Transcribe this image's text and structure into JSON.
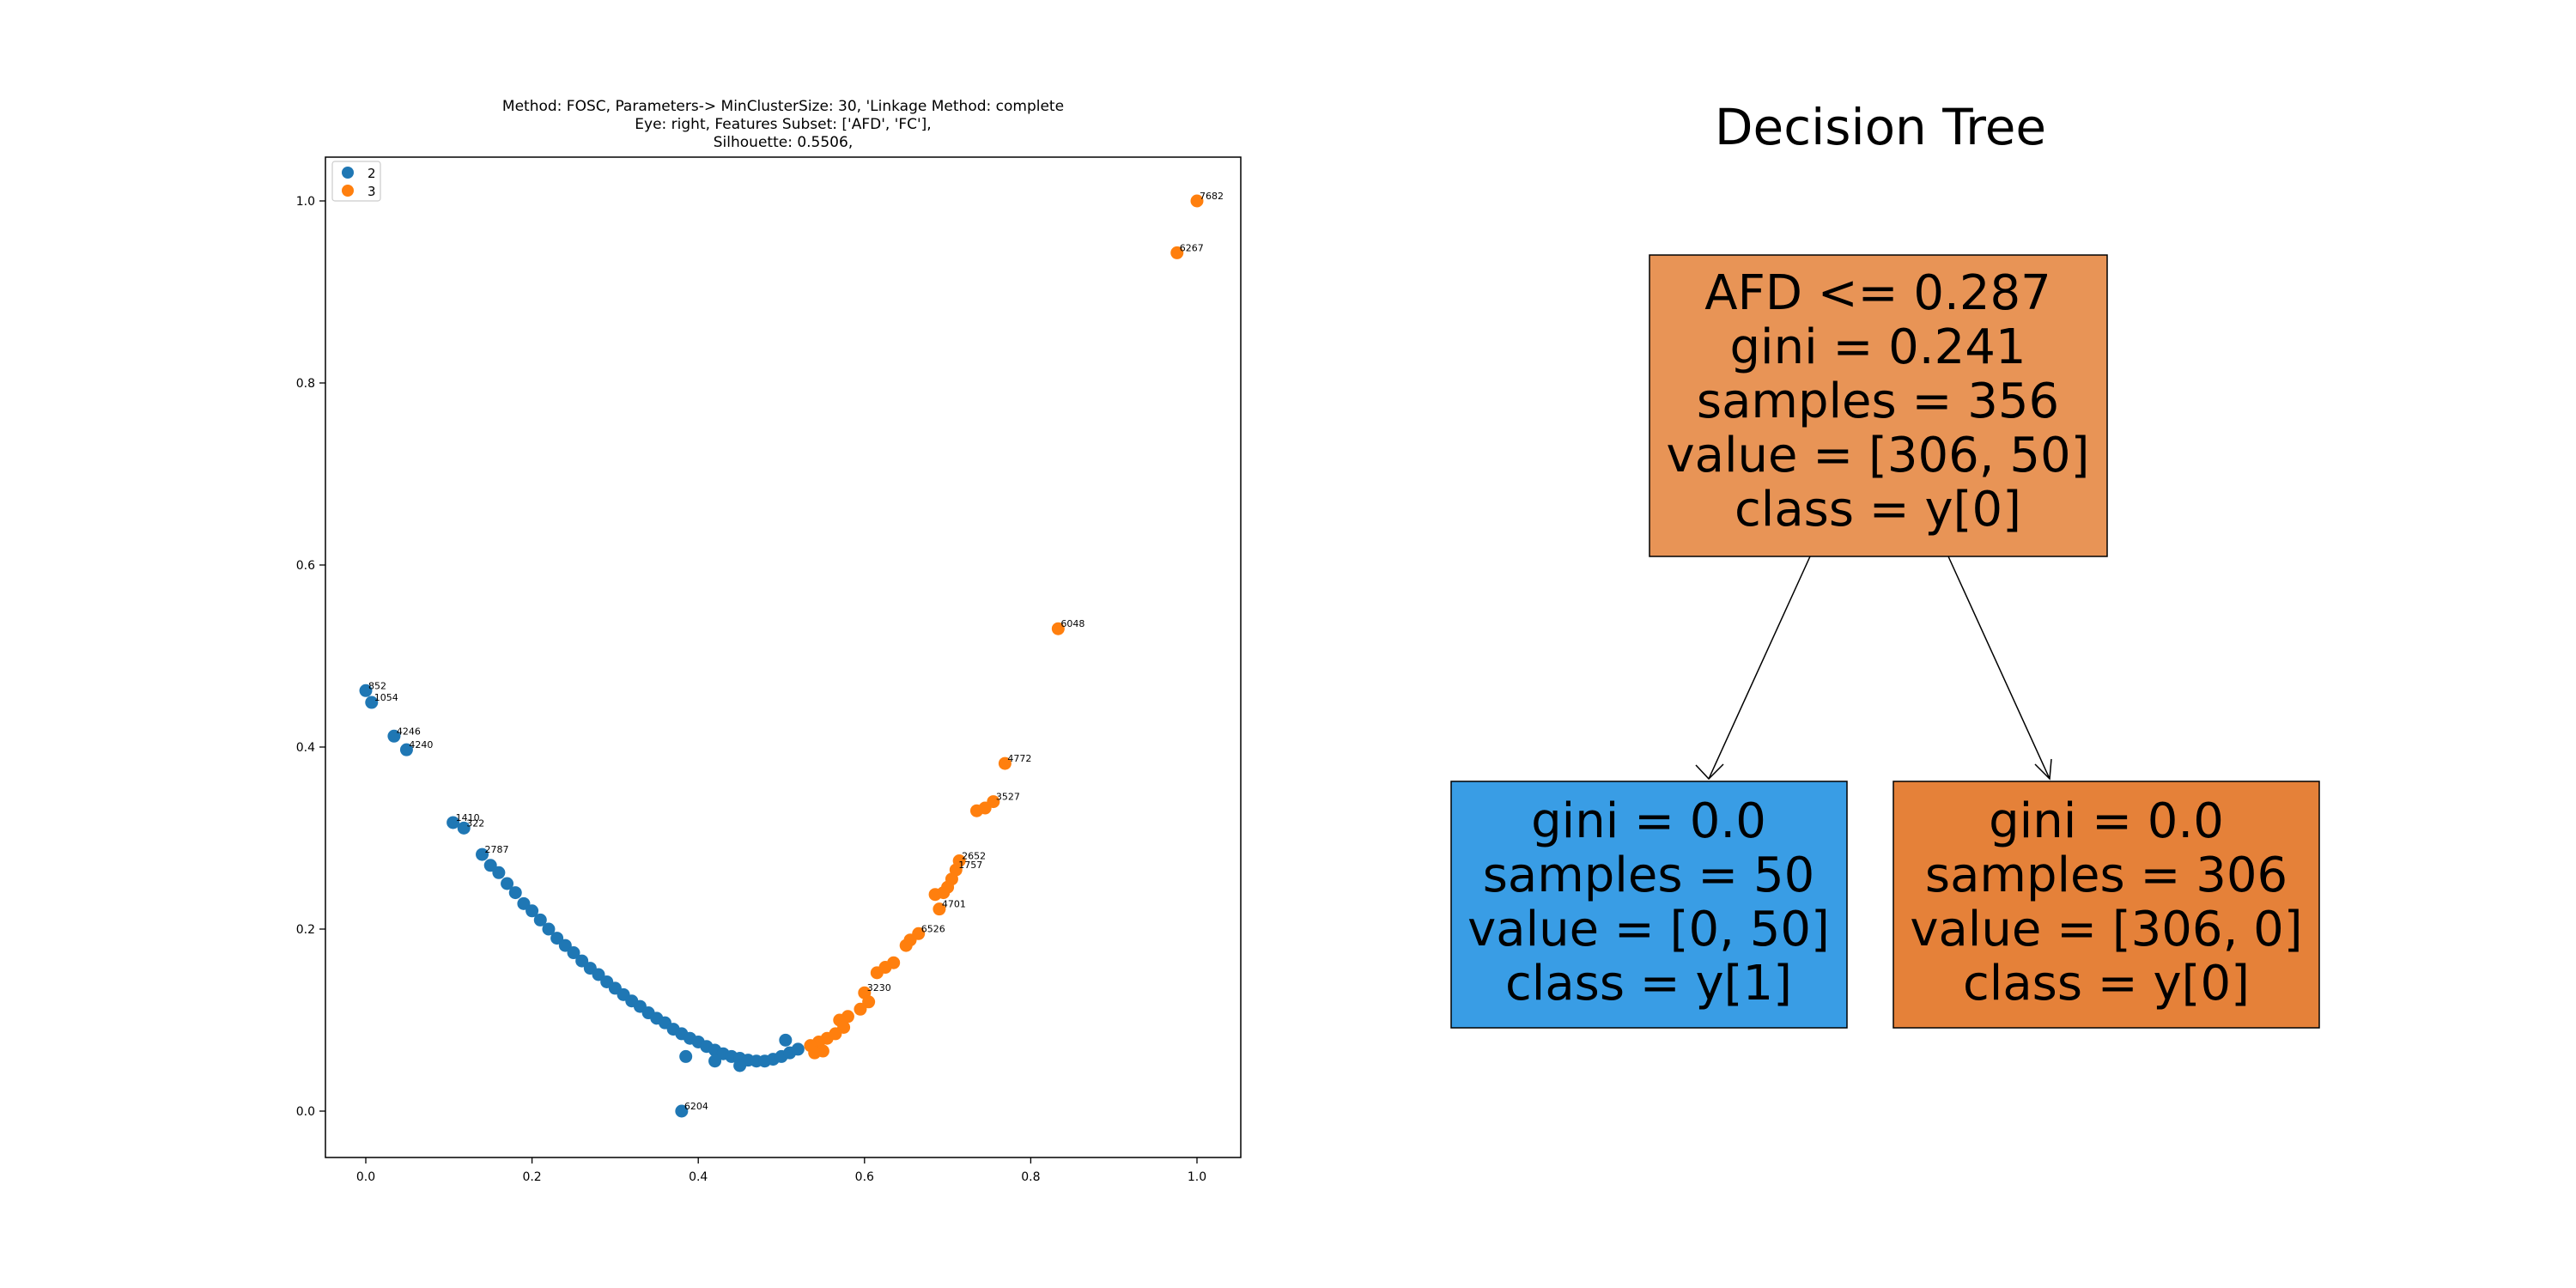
{
  "scatter": {
    "title_lines": [
      "Method: FOSC, Parameters-> MinClusterSize: 30, 'Linkage Method: complete",
      "Eye: right, Features Subset: ['AFD', 'FC'],",
      "Silhouette: 0.5506,"
    ],
    "legend": [
      {
        "label": "2",
        "color": "#1f77b4"
      },
      {
        "label": "3",
        "color": "#ff7f0e"
      }
    ]
  },
  "tree": {
    "title": "Decision Tree",
    "root": {
      "lines": [
        "AFD <= 0.287",
        "gini = 0.241",
        "samples = 356",
        "value = [306, 50]",
        "class = y[0]"
      ],
      "fill": "#e89456"
    },
    "left": {
      "lines": [
        "gini = 0.0",
        "samples = 50",
        "value = [0, 50]",
        "class = y[1]"
      ],
      "fill": "#399de5"
    },
    "right": {
      "lines": [
        "gini = 0.0",
        "samples = 306",
        "value = [306, 0]",
        "class = y[0]"
      ],
      "fill": "#e58139"
    }
  },
  "chart_data": {
    "type": "scatter",
    "title": "Method: FOSC, Parameters-> MinClusterSize: 30, 'Linkage Method: complete\nEye: right, Features Subset: ['AFD', 'FC'],\nSilhouette: 0.5506,",
    "xlabel": "",
    "ylabel": "",
    "xlim": [
      -0.05,
      1.05
    ],
    "ylim": [
      -0.05,
      1.05
    ],
    "xticks": [
      "0.0",
      "0.2",
      "0.4",
      "0.6",
      "0.8",
      "1.0"
    ],
    "yticks": [
      "0.0",
      "0.2",
      "0.4",
      "0.6",
      "0.8",
      "1.0"
    ],
    "grid": false,
    "legend_position": "top-left",
    "series": [
      {
        "name": "2",
        "color": "#1f77b4",
        "points": [
          {
            "x": 0.0,
            "y": 0.462,
            "label": "852"
          },
          {
            "x": 0.007,
            "y": 0.449,
            "label": "1054"
          },
          {
            "x": 0.034,
            "y": 0.412,
            "label": "4246"
          },
          {
            "x": 0.049,
            "y": 0.397,
            "label": "4240"
          },
          {
            "x": 0.105,
            "y": 0.317,
            "label": "1410"
          },
          {
            "x": 0.118,
            "y": 0.311,
            "label": "322"
          },
          {
            "x": 0.14,
            "y": 0.282,
            "label": "2787"
          },
          {
            "x": 0.15,
            "y": 0.27
          },
          {
            "x": 0.16,
            "y": 0.262
          },
          {
            "x": 0.17,
            "y": 0.25
          },
          {
            "x": 0.18,
            "y": 0.24
          },
          {
            "x": 0.19,
            "y": 0.228
          },
          {
            "x": 0.2,
            "y": 0.22
          },
          {
            "x": 0.21,
            "y": 0.21
          },
          {
            "x": 0.22,
            "y": 0.2
          },
          {
            "x": 0.23,
            "y": 0.19
          },
          {
            "x": 0.24,
            "y": 0.182
          },
          {
            "x": 0.25,
            "y": 0.174
          },
          {
            "x": 0.26,
            "y": 0.165
          },
          {
            "x": 0.27,
            "y": 0.157
          },
          {
            "x": 0.28,
            "y": 0.15
          },
          {
            "x": 0.29,
            "y": 0.142
          },
          {
            "x": 0.3,
            "y": 0.135
          },
          {
            "x": 0.31,
            "y": 0.128
          },
          {
            "x": 0.32,
            "y": 0.121
          },
          {
            "x": 0.33,
            "y": 0.115
          },
          {
            "x": 0.34,
            "y": 0.108
          },
          {
            "x": 0.35,
            "y": 0.102
          },
          {
            "x": 0.36,
            "y": 0.097
          },
          {
            "x": 0.37,
            "y": 0.09
          },
          {
            "x": 0.38,
            "y": 0.085
          },
          {
            "x": 0.39,
            "y": 0.08
          },
          {
            "x": 0.4,
            "y": 0.076
          },
          {
            "x": 0.41,
            "y": 0.071
          },
          {
            "x": 0.42,
            "y": 0.067
          },
          {
            "x": 0.43,
            "y": 0.063
          },
          {
            "x": 0.44,
            "y": 0.06
          },
          {
            "x": 0.45,
            "y": 0.058
          },
          {
            "x": 0.46,
            "y": 0.056
          },
          {
            "x": 0.47,
            "y": 0.055
          },
          {
            "x": 0.48,
            "y": 0.055
          },
          {
            "x": 0.49,
            "y": 0.057
          },
          {
            "x": 0.5,
            "y": 0.06
          },
          {
            "x": 0.51,
            "y": 0.064
          },
          {
            "x": 0.52,
            "y": 0.068
          },
          {
            "x": 0.385,
            "y": 0.06
          },
          {
            "x": 0.42,
            "y": 0.055
          },
          {
            "x": 0.45,
            "y": 0.05
          },
          {
            "x": 0.505,
            "y": 0.078
          },
          {
            "x": 0.38,
            "y": 0.0,
            "label": "6204"
          }
        ]
      },
      {
        "name": "3",
        "color": "#ff7f0e",
        "points": [
          {
            "x": 1.0,
            "y": 1.0,
            "label": "7682"
          },
          {
            "x": 0.976,
            "y": 0.943,
            "label": "6267"
          },
          {
            "x": 0.833,
            "y": 0.53,
            "label": "6048"
          },
          {
            "x": 0.769,
            "y": 0.382,
            "label": "4772"
          },
          {
            "x": 0.755,
            "y": 0.34,
            "label": "3527"
          },
          {
            "x": 0.745,
            "y": 0.333
          },
          {
            "x": 0.735,
            "y": 0.33
          },
          {
            "x": 0.714,
            "y": 0.275,
            "label": "2652"
          },
          {
            "x": 0.71,
            "y": 0.265,
            "label": "1757"
          },
          {
            "x": 0.705,
            "y": 0.255
          },
          {
            "x": 0.7,
            "y": 0.246
          },
          {
            "x": 0.695,
            "y": 0.24
          },
          {
            "x": 0.685,
            "y": 0.238
          },
          {
            "x": 0.69,
            "y": 0.222,
            "label": "4701"
          },
          {
            "x": 0.665,
            "y": 0.195,
            "label": "6526"
          },
          {
            "x": 0.655,
            "y": 0.188
          },
          {
            "x": 0.65,
            "y": 0.182
          },
          {
            "x": 0.635,
            "y": 0.163
          },
          {
            "x": 0.625,
            "y": 0.158
          },
          {
            "x": 0.615,
            "y": 0.152
          },
          {
            "x": 0.6,
            "y": 0.13,
            "label": "3230"
          },
          {
            "x": 0.605,
            "y": 0.12
          },
          {
            "x": 0.595,
            "y": 0.112
          },
          {
            "x": 0.58,
            "y": 0.104
          },
          {
            "x": 0.57,
            "y": 0.1
          },
          {
            "x": 0.575,
            "y": 0.092
          },
          {
            "x": 0.565,
            "y": 0.085
          },
          {
            "x": 0.555,
            "y": 0.08
          },
          {
            "x": 0.545,
            "y": 0.076
          },
          {
            "x": 0.535,
            "y": 0.072
          },
          {
            "x": 0.55,
            "y": 0.066
          },
          {
            "x": 0.54,
            "y": 0.064
          }
        ]
      }
    ]
  }
}
